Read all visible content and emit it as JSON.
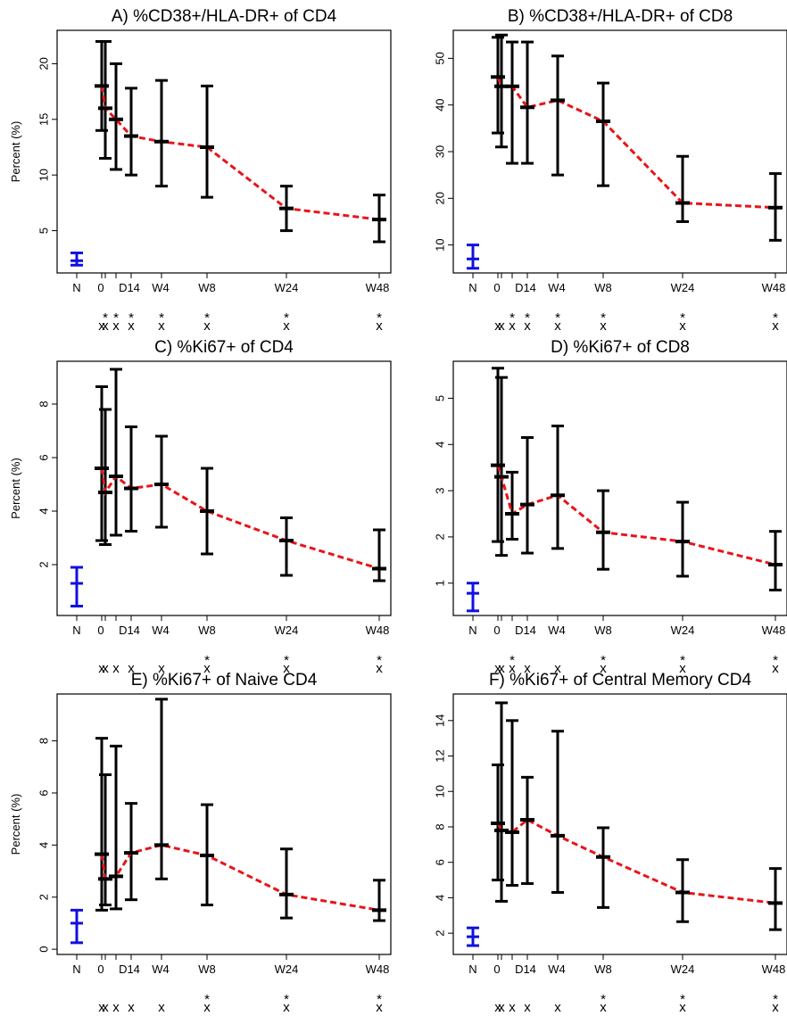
{
  "figure": {
    "x_categories": [
      {
        "label": "N",
        "t": -14
      },
      {
        "label": "0",
        "t": 0
      },
      {
        "label": "D14",
        "t": 14
      },
      {
        "label": "W4",
        "t": 28
      },
      {
        "label": "W8",
        "t": 56
      },
      {
        "label": "W24",
        "t": 168
      },
      {
        "label": "W48",
        "t": 336
      }
    ],
    "marker_rows": [
      {
        "symbol": "*"
      },
      {
        "symbol": "x"
      }
    ]
  },
  "chart_data": [
    {
      "type": "line",
      "title": "A) %CD38+/HLA-DR+ of CD4",
      "ylabel": "Percent (%)",
      "ylim": [
        1.2,
        23
      ],
      "yticks": [
        5,
        10,
        15,
        20
      ],
      "normal": {
        "label": "N",
        "value": 2.3,
        "low": 1.9,
        "high": 3.0
      },
      "x": [
        0,
        3,
        7,
        14,
        28,
        56,
        168,
        336
      ],
      "series": [
        {
          "values": [
            18,
            16,
            15,
            13.5,
            13,
            12.5,
            7,
            6
          ],
          "low": [
            14,
            11.5,
            10.5,
            10,
            9,
            8,
            5,
            4
          ],
          "high": [
            22,
            22,
            20,
            17.8,
            18.5,
            18,
            9,
            8.2
          ]
        }
      ],
      "markers": {
        "star": [
          3,
          7,
          14,
          28,
          56,
          168,
          336
        ],
        "x": [
          0,
          3,
          7,
          14,
          28,
          56,
          168,
          336
        ]
      }
    },
    {
      "type": "line",
      "title": "B) %CD38+/HLA-DR+ of CD8",
      "ylabel": "",
      "ylim": [
        4,
        56
      ],
      "yticks": [
        10,
        20,
        30,
        40,
        50
      ],
      "normal": {
        "label": "N",
        "value": 7,
        "low": 5,
        "high": 10
      },
      "x": [
        0,
        3,
        7,
        14,
        28,
        56,
        168,
        336
      ],
      "series": [
        {
          "values": [
            46,
            44,
            44,
            39.5,
            41,
            36.5,
            19,
            18
          ],
          "low": [
            34,
            31,
            27.5,
            27.5,
            25,
            22.7,
            15,
            11
          ],
          "high": [
            54.5,
            55,
            53.5,
            53.5,
            50.5,
            44.7,
            29,
            25.3
          ]
        }
      ],
      "markers": {
        "star": [
          7,
          14,
          28,
          56,
          168,
          336
        ],
        "x": [
          0,
          3,
          7,
          14,
          28,
          56,
          168,
          336
        ]
      }
    },
    {
      "type": "line",
      "title": "C) %Ki67+ of CD4",
      "ylabel": "Percent (%)",
      "ylim": [
        0.1,
        9.6
      ],
      "yticks": [
        2,
        4,
        6,
        8
      ],
      "normal": {
        "label": "N",
        "value": 1.3,
        "low": 0.45,
        "high": 1.9
      },
      "x": [
        0,
        3,
        7,
        14,
        28,
        56,
        168,
        336
      ],
      "series": [
        {
          "values": [
            5.6,
            4.7,
            5.3,
            4.85,
            5.0,
            4.0,
            2.9,
            1.85
          ],
          "low": [
            2.9,
            2.75,
            3.1,
            3.25,
            3.4,
            2.4,
            1.6,
            1.4
          ],
          "high": [
            8.65,
            7.8,
            9.3,
            7.15,
            6.8,
            5.6,
            3.75,
            3.3
          ]
        }
      ],
      "markers": {
        "star": [
          56,
          168,
          336
        ],
        "x": [
          0,
          3,
          7,
          14,
          28,
          56,
          168,
          336
        ]
      }
    },
    {
      "type": "line",
      "title": "D) %Ki67+ of CD8",
      "ylabel": "",
      "ylim": [
        0.3,
        5.8
      ],
      "yticks": [
        1,
        2,
        3,
        4,
        5
      ],
      "normal": {
        "label": "N",
        "value": 0.78,
        "low": 0.4,
        "high": 1.0
      },
      "x": [
        0,
        3,
        7,
        14,
        28,
        56,
        168,
        336
      ],
      "series": [
        {
          "values": [
            3.55,
            3.3,
            2.5,
            2.7,
            2.9,
            2.1,
            1.9,
            1.4
          ],
          "low": [
            1.9,
            1.6,
            1.95,
            1.65,
            1.75,
            1.3,
            1.15,
            0.85
          ],
          "high": [
            5.65,
            5.45,
            3.4,
            4.15,
            4.4,
            3.0,
            2.75,
            2.12
          ]
        }
      ],
      "markers": {
        "star": [
          7,
          56,
          168,
          336
        ],
        "x": [
          0,
          3,
          7,
          14,
          28,
          56,
          168,
          336
        ]
      }
    },
    {
      "type": "line",
      "title": "E) %Ki67+ of Naive CD4",
      "ylabel": "Percent (%)",
      "ylim": [
        -0.2,
        9.8
      ],
      "yticks": [
        0,
        2,
        4,
        6,
        8
      ],
      "normal": {
        "label": "N",
        "value": 1.0,
        "low": 0.25,
        "high": 1.5
      },
      "x": [
        0,
        3,
        7,
        14,
        28,
        56,
        168,
        336
      ],
      "series": [
        {
          "values": [
            3.65,
            2.7,
            2.8,
            3.7,
            4.0,
            3.6,
            2.1,
            1.5
          ],
          "low": [
            1.5,
            1.7,
            1.55,
            1.9,
            2.7,
            1.7,
            1.2,
            1.1
          ],
          "high": [
            8.1,
            6.7,
            7.8,
            5.6,
            9.6,
            5.55,
            3.85,
            2.65
          ]
        }
      ],
      "markers": {
        "star": [
          56,
          168,
          336
        ],
        "x": [
          0,
          3,
          7,
          14,
          28,
          56,
          168,
          336
        ]
      }
    },
    {
      "type": "line",
      "title": "F) %Ki67+ of Central Memory CD4",
      "ylabel": "",
      "ylim": [
        0.8,
        15.5
      ],
      "yticks": [
        2,
        4,
        6,
        8,
        10,
        12,
        14
      ],
      "normal": {
        "label": "N",
        "value": 1.8,
        "low": 1.3,
        "high": 2.3
      },
      "x": [
        0,
        3,
        7,
        14,
        28,
        56,
        168,
        336
      ],
      "series": [
        {
          "values": [
            8.2,
            7.8,
            7.7,
            8.4,
            7.5,
            6.3,
            4.3,
            3.7
          ],
          "low": [
            5.0,
            3.8,
            4.7,
            4.8,
            4.3,
            3.45,
            2.65,
            2.2
          ],
          "high": [
            11.5,
            15.0,
            14.0,
            10.8,
            13.4,
            7.95,
            6.15,
            5.65
          ]
        }
      ],
      "markers": {
        "star": [
          56,
          168,
          336
        ],
        "x": [
          0,
          3,
          7,
          14,
          28,
          56,
          168,
          336
        ]
      }
    }
  ]
}
